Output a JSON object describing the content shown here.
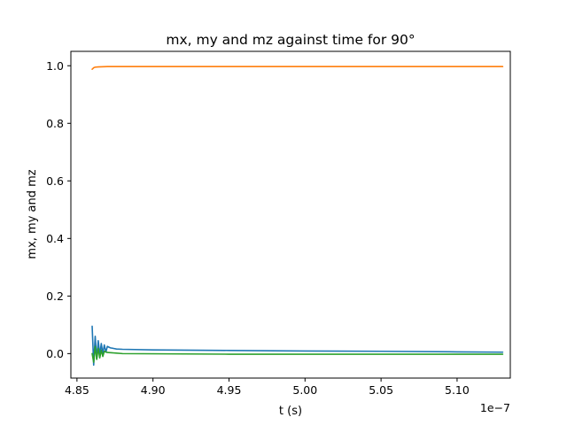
{
  "chart_data": {
    "type": "line",
    "title": "mx, my and mz against time for 90°",
    "xlabel": "t (s)",
    "ylabel": "mx, my and mz",
    "x_offset_label": "1e−7",
    "xlim": [
      4.846e-07,
      5.135e-07
    ],
    "ylim": [
      -0.085,
      1.05
    ],
    "xticks": [
      4.85e-07,
      4.9e-07,
      4.95e-07,
      5e-07,
      5.05e-07,
      5.1e-07
    ],
    "xtick_labels": [
      "4.85",
      "4.90",
      "4.95",
      "5.00",
      "5.05",
      "5.10"
    ],
    "yticks": [
      0.0,
      0.2,
      0.4,
      0.6,
      0.8,
      1.0
    ],
    "ytick_labels": [
      "0.0",
      "0.2",
      "0.4",
      "0.6",
      "0.8",
      "1.0"
    ],
    "grid": false,
    "legend": "none",
    "series": [
      {
        "color": "#1f77b4",
        "x": [
          4.86e-07,
          4.861e-07,
          4.862e-07,
          4.863e-07,
          4.864e-07,
          4.865e-07,
          4.866e-07,
          4.867e-07,
          4.868e-07,
          4.869e-07,
          4.87e-07,
          4.872e-07,
          4.874e-07,
          4.876e-07,
          4.88e-07,
          4.9e-07,
          4.95e-07,
          5e-07,
          5.05e-07,
          5.1e-07,
          5.13e-07
        ],
        "y": [
          0.095,
          -0.04,
          0.06,
          -0.02,
          0.045,
          -0.005,
          0.035,
          0.0,
          0.03,
          0.005,
          0.025,
          0.02,
          0.018,
          0.016,
          0.015,
          0.013,
          0.011,
          0.009,
          0.008,
          0.006,
          0.005
        ]
      },
      {
        "color": "#ff7f0e",
        "x": [
          4.86e-07,
          4.861e-07,
          4.862e-07,
          4.864e-07,
          4.87e-07,
          4.9e-07,
          5e-07,
          5.1e-07,
          5.13e-07
        ],
        "y": [
          0.988,
          0.993,
          0.995,
          0.996,
          0.997,
          0.997,
          0.997,
          0.997,
          0.997
        ]
      },
      {
        "color": "#2ca02c",
        "x": [
          4.86e-07,
          4.861e-07,
          4.862e-07,
          4.863e-07,
          4.864e-07,
          4.865e-07,
          4.866e-07,
          4.867e-07,
          4.868e-07,
          4.87e-07,
          4.875e-07,
          4.88e-07,
          4.95e-07,
          5.05e-07,
          5.13e-07
        ],
        "y": [
          0.0,
          -0.03,
          0.025,
          -0.02,
          0.018,
          -0.015,
          0.012,
          -0.01,
          0.008,
          0.004,
          0.002,
          0.0,
          -0.002,
          -0.002,
          -0.002
        ]
      }
    ]
  }
}
